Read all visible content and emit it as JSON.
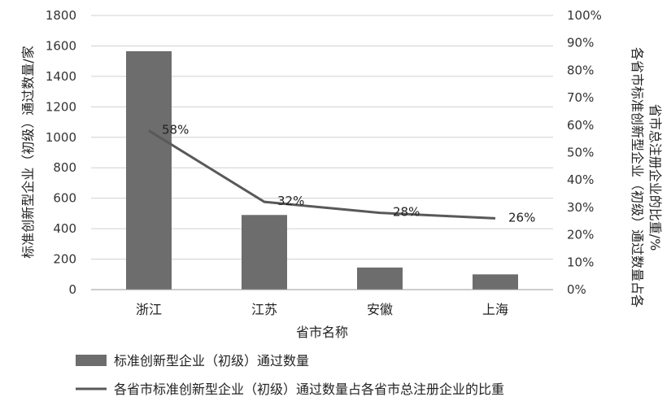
{
  "chart_data": {
    "type": "bar",
    "categories": [
      "浙江",
      "江苏",
      "安徽",
      "上海"
    ],
    "xlabel": "省市名称",
    "ylabel": "标准创新型企业（初级）通过数量/家",
    "y2label_line1": "各省市标准创新型企业（初级）通过数量占各",
    "y2label_line2": "省市总注册企业的比重/%",
    "ylim": [
      0,
      1800
    ],
    "y2lim": [
      0,
      100
    ],
    "yticks": [
      "0",
      "200",
      "400",
      "600",
      "800",
      "1000",
      "1200",
      "1400",
      "1600",
      "1800"
    ],
    "y2ticks": [
      "0%",
      "10%",
      "20%",
      "30%",
      "40%",
      "50%",
      "60%",
      "70%",
      "80%",
      "90%",
      "100%"
    ],
    "series": [
      {
        "name": "标准创新型企业（初级）通过数量",
        "type": "bar",
        "axis": "left",
        "values": [
          1565,
          490,
          145,
          100
        ],
        "color": "#6d6d6d"
      },
      {
        "name": "各省市标准创新型企业（初级）通过数量占各省市总注册企业的比重",
        "type": "line",
        "axis": "right",
        "values": [
          58,
          32,
          28,
          26
        ],
        "labels": [
          "58%",
          "32%",
          "28%",
          "26%"
        ],
        "color": "#595959"
      }
    ],
    "grid": true,
    "legend": "bottom"
  }
}
